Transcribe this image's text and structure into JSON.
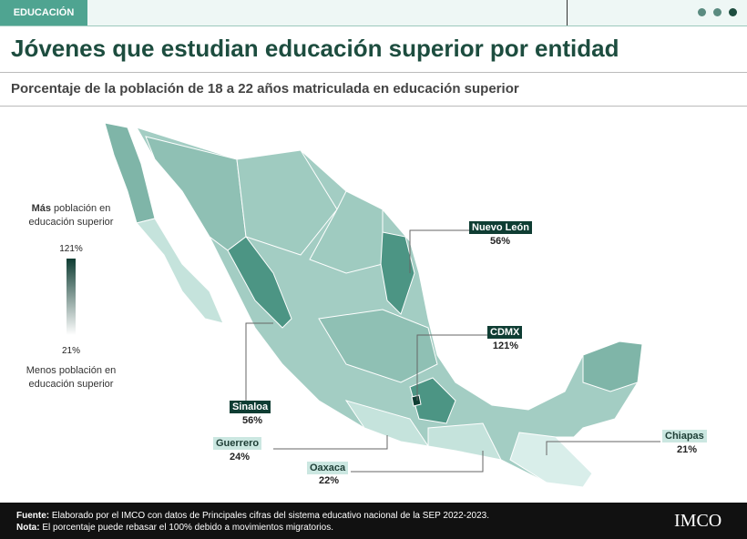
{
  "header": {
    "tag": "EDUCACIÓN",
    "title": "Jóvenes que estudian educación superior por entidad",
    "subtitle": "Porcentaje de la población de 18 a 22 años matriculada en educación superior"
  },
  "legend": {
    "top_bold": "Más",
    "top_rest": "población en educación superior",
    "max": "121%",
    "min": "21%",
    "bottom": "Menos población en educación superior"
  },
  "callouts": [
    {
      "name": "Nuevo León",
      "value": "56%"
    },
    {
      "name": "CDMX",
      "value": "121%"
    },
    {
      "name": "Sinaloa",
      "value": "56%"
    },
    {
      "name": "Guerrero",
      "value": "24%"
    },
    {
      "name": "Oaxaca",
      "value": "22%"
    },
    {
      "name": "Chiapas",
      "value": "21%"
    }
  ],
  "footer": {
    "source_label": "Fuente:",
    "source": "Elaborado por el IMCO con datos de Principales cifras del sistema educativo nacional de la SEP 2022-2023.",
    "note_label": "Nota:",
    "note": "El porcentaje puede rebasar el 100% debido a movimientos migratorios."
  },
  "logo": "IMCO"
}
